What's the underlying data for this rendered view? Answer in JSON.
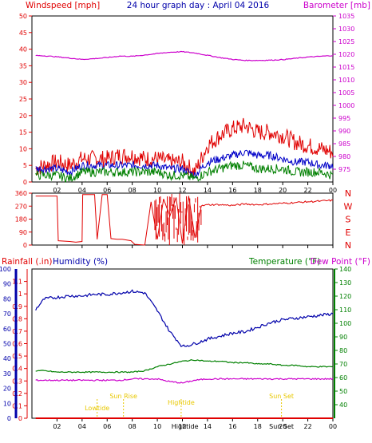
{
  "title": "24 hour graph day : April 04 2016",
  "colors": {
    "wind": "#e00000",
    "wind_avg": "#0000c8",
    "wind_low": "#008000",
    "baro": "#cc00cc",
    "dir": "#e00000",
    "rain": "#e00000",
    "humidity": "#0000aa",
    "temp": "#008000",
    "dewpoint": "#cc00cc",
    "sun": "#e8c800",
    "axis": "#000000"
  },
  "x_ticks": [
    "02",
    "04",
    "06",
    "08",
    "10",
    "12",
    "14",
    "16",
    "18",
    "20",
    "22",
    "00"
  ],
  "chart_data": [
    {
      "type": "line",
      "name": "wind-barometer",
      "xlim": [
        0,
        24
      ],
      "ylabel_left": "Windspeed [mph]",
      "ylabel_right": "Barometer [mb]",
      "ylim_left": [
        0,
        50
      ],
      "ylim_right": [
        970,
        1035
      ],
      "yticks_left": [
        "0",
        "5",
        "10",
        "15",
        "20",
        "25",
        "30",
        "35",
        "40",
        "45",
        "50"
      ],
      "yticks_right": [
        "975",
        "980",
        "985",
        "990",
        "995",
        "1000",
        "1005",
        "1010",
        "1015",
        "1020",
        "1025",
        "1030",
        "1035"
      ],
      "x": [
        0.3,
        1,
        2,
        3,
        4,
        5,
        6,
        7,
        8,
        9,
        10,
        11,
        12,
        13,
        14,
        15,
        16,
        17,
        18,
        19,
        20,
        21,
        22,
        23,
        24
      ],
      "series": [
        {
          "name": "gust",
          "axis": "left",
          "values": [
            4,
            5,
            6,
            5,
            7,
            7,
            7,
            8,
            8,
            7,
            7,
            6,
            6,
            3,
            11,
            14,
            16,
            17,
            15,
            15,
            14,
            12,
            11,
            10,
            9
          ]
        },
        {
          "name": "average",
          "axis": "left",
          "values": [
            4,
            4,
            4,
            3,
            5,
            5,
            5,
            5,
            5,
            5,
            5,
            4,
            4,
            2,
            6,
            7,
            8,
            9,
            8,
            8,
            7,
            6,
            6,
            5,
            5
          ]
        },
        {
          "name": "low",
          "axis": "left",
          "values": [
            2,
            2,
            2,
            1,
            3,
            3,
            3,
            3,
            3,
            3,
            3,
            2,
            2,
            1,
            3,
            4,
            5,
            5,
            4,
            4,
            4,
            3,
            3,
            3,
            2
          ]
        },
        {
          "name": "barometer",
          "axis": "right",
          "values": [
            1019.5,
            1019.4,
            1019.0,
            1018.5,
            1018.0,
            1018.3,
            1018.7,
            1019.3,
            1019.2,
            1019.7,
            1020.3,
            1020.8,
            1021.0,
            1020.5,
            1019.6,
            1018.7,
            1018.0,
            1017.6,
            1017.6,
            1017.7,
            1017.9,
            1018.4,
            1018.9,
            1019.2,
            1019.5
          ]
        }
      ]
    },
    {
      "type": "line",
      "name": "wind-direction",
      "xlim": [
        0,
        24
      ],
      "ylim": [
        0,
        360
      ],
      "yticks_left": [
        "0",
        "90",
        "180",
        "270",
        "360"
      ],
      "labels_right": [
        "N",
        "W",
        "S",
        "E",
        "N"
      ],
      "x": [
        0.3,
        1,
        2,
        2.1,
        3,
        3.5,
        4,
        4.05,
        5,
        5.2,
        5.6,
        6,
        6.3,
        6.8,
        7.2,
        7.9,
        8.2,
        9,
        9.5,
        10,
        10.5,
        11,
        11.5,
        12,
        12.5,
        13,
        13.5,
        14,
        15,
        16,
        17,
        18,
        19,
        20,
        21,
        22,
        23,
        24
      ],
      "values": [
        340,
        340,
        340,
        30,
        25,
        20,
        25,
        350,
        350,
        40,
        350,
        350,
        45,
        40,
        40,
        30,
        5,
        0,
        300,
        40,
        320,
        200,
        330,
        10,
        340,
        50,
        270,
        280,
        280,
        275,
        285,
        280,
        285,
        290,
        295,
        300,
        305,
        310
      ]
    },
    {
      "type": "line",
      "name": "rain-humidity-temperature",
      "xlim": [
        0,
        24
      ],
      "ylabel_left_1": "Rainfall (.in)",
      "ylabel_left_2": "Humidity (%)",
      "ylabel_right_1": "Temperature (°F)",
      "ylabel_right_2": "Dew Point (°F)",
      "ylim_rain": [
        0,
        1.2
      ],
      "ylim_humidity": [
        0,
        100
      ],
      "ylim_temp": [
        30,
        140
      ],
      "yticks_rain": [
        "0",
        "0.1",
        "0.2",
        "0.3",
        "0.4",
        "0.5",
        "0.6",
        "0.7",
        "0.8",
        "0.9",
        "1",
        "1.1"
      ],
      "yticks_humidity": [
        "0",
        "10",
        "20",
        "30",
        "40",
        "50",
        "60",
        "70",
        "80",
        "90",
        "100"
      ],
      "yticks_temp": [
        "40",
        "50",
        "60",
        "70",
        "80",
        "90",
        "100",
        "110",
        "120",
        "130",
        "140"
      ],
      "x": [
        0.3,
        1,
        2,
        3,
        4,
        5,
        6,
        7,
        8,
        9,
        10,
        11,
        12,
        13,
        14,
        15,
        16,
        17,
        18,
        19,
        20,
        21,
        22,
        23,
        24
      ],
      "series": [
        {
          "name": "humidity",
          "axis": "humidity",
          "values": [
            73,
            80,
            81,
            82,
            82,
            83,
            83,
            84,
            85,
            84,
            72,
            58,
            48,
            50,
            53,
            55,
            57,
            58,
            61,
            64,
            66,
            67,
            68,
            69,
            70
          ]
        },
        {
          "name": "temperature",
          "axis": "temp",
          "values": [
            65,
            65,
            64,
            64,
            64,
            64,
            64,
            64,
            64,
            65,
            68,
            70,
            72,
            73,
            72,
            72,
            71,
            71,
            70,
            70,
            69,
            69,
            68,
            68,
            68
          ]
        },
        {
          "name": "dew point",
          "axis": "temp",
          "values": [
            58,
            58,
            58,
            58,
            58,
            58,
            58,
            58,
            59,
            59,
            59,
            57,
            56,
            58,
            59,
            59,
            59,
            59,
            59,
            59,
            59,
            59,
            59,
            59,
            59
          ]
        },
        {
          "name": "rainfall",
          "axis": "rain",
          "values": [
            0,
            0,
            0,
            0,
            0,
            0,
            0,
            0,
            0,
            0,
            0,
            0,
            0,
            0,
            0,
            0,
            0,
            0,
            0,
            0,
            0,
            0,
            0,
            0,
            0
          ]
        }
      ],
      "annotations": [
        {
          "label": "Lowtide",
          "x": 5.2
        },
        {
          "label": "Sun Rise",
          "x": 7.3
        },
        {
          "label": "Hightide",
          "x": 11.9
        },
        {
          "label": "Sun Set",
          "x": 19.9
        }
      ],
      "axis_markers": [
        {
          "label": "Hightide",
          "x": 12.2
        },
        {
          "label": "Sun Set",
          "x": 19.9
        }
      ]
    }
  ]
}
